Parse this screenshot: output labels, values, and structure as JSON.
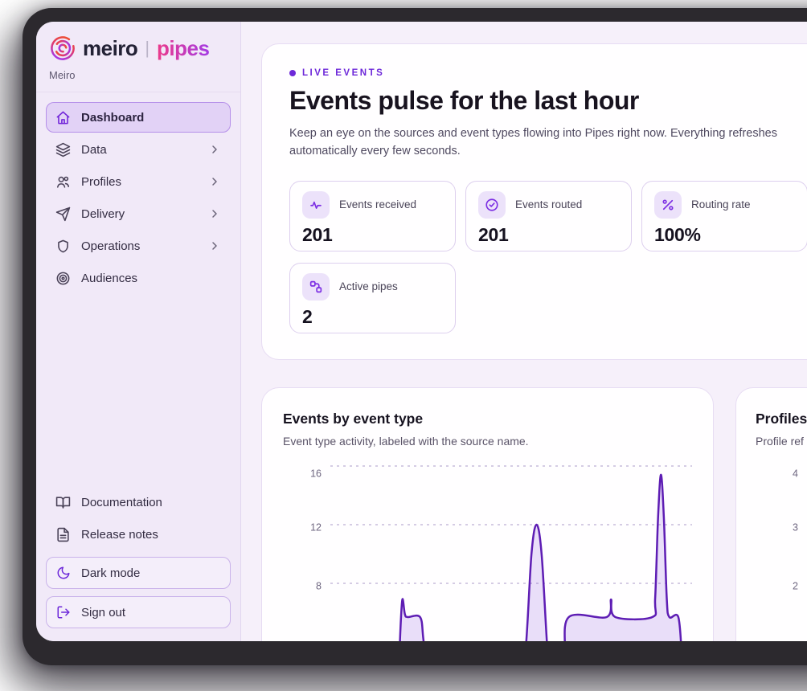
{
  "theme": {
    "accent": "#7c2fe3",
    "accent_deep": "#5e1db4",
    "frame": "#2c292e",
    "app_bg": "#f6f0fa",
    "sidebar_bg": "#f1e9f8",
    "card_bg": "#fffeff",
    "border": "#e2d5f0",
    "active_item_bg": "#e2d2f6",
    "brand_gradient": [
      "#ef4f2e",
      "#e03a6e",
      "#a936df"
    ],
    "pipes_gradient": [
      "#ec3a8a",
      "#a43ae3"
    ]
  },
  "brand": {
    "name": "meiro",
    "separator": "|",
    "product": "pipes",
    "workspace": "Meiro"
  },
  "sidebar": {
    "nav": [
      {
        "label": "Dashboard",
        "icon": "home",
        "active": true,
        "chevron": false
      },
      {
        "label": "Data",
        "icon": "layers",
        "active": false,
        "chevron": true
      },
      {
        "label": "Profiles",
        "icon": "users",
        "active": false,
        "chevron": true
      },
      {
        "label": "Delivery",
        "icon": "send",
        "active": false,
        "chevron": true
      },
      {
        "label": "Operations",
        "icon": "shield",
        "active": false,
        "chevron": true
      },
      {
        "label": "Audiences",
        "icon": "target",
        "active": false,
        "chevron": false
      }
    ],
    "footer_links": [
      {
        "label": "Documentation",
        "icon": "book-open"
      },
      {
        "label": "Release notes",
        "icon": "file-text"
      }
    ],
    "footer_buttons": [
      {
        "label": "Dark mode",
        "icon": "moon"
      },
      {
        "label": "Sign out",
        "icon": "log-out"
      }
    ]
  },
  "hero": {
    "badge": "LIVE EVENTS",
    "title": "Events pulse for the last hour",
    "subtitle": "Keep an eye on the sources and event types flowing into Pipes right now. Everything refreshes automatically every few seconds.",
    "stats": [
      {
        "label": "Events received",
        "value": "201",
        "icon": "activity"
      },
      {
        "label": "Events routed",
        "value": "201",
        "icon": "check-circle"
      },
      {
        "label": "Routing rate",
        "value": "100%",
        "icon": "percent"
      },
      {
        "label": "Active pipes",
        "value": "2",
        "icon": "workflow"
      }
    ]
  },
  "chart_data": [
    {
      "type": "area",
      "title": "Events by event type",
      "subtitle": "Event type activity, labeled with the source name.",
      "yticks": [
        16,
        12,
        8
      ],
      "ylim": [
        0,
        17
      ],
      "grid": "dashed-horizontal",
      "legend": false,
      "x_note": "last hour, x axis cropped out of view",
      "series": [
        {
          "name": "Events",
          "stroke": "#5e1db4",
          "fill": "rgba(126,63,222,0.17)",
          "points": [
            [
              0.186,
              0
            ],
            [
              0.193,
              4.5
            ],
            [
              0.199,
              6.9
            ],
            [
              0.206,
              5.9
            ],
            [
              0.214,
              5.7
            ],
            [
              0.248,
              5.7
            ],
            [
              0.257,
              4.2
            ],
            [
              0.27,
              1.0
            ],
            [
              0.278,
              0
            ],
            [
              0.52,
              0
            ],
            [
              0.54,
              3.5
            ],
            [
              0.556,
              10.0
            ],
            [
              0.57,
              12.0
            ],
            [
              0.584,
              10.0
            ],
            [
              0.6,
              3.5
            ],
            [
              0.614,
              0
            ],
            [
              0.636,
              0
            ],
            [
              0.648,
              3.0
            ],
            [
              0.659,
              5.7
            ],
            [
              0.764,
              5.7
            ],
            [
              0.776,
              6.9
            ],
            [
              0.788,
              5.7
            ],
            [
              0.89,
              5.7
            ],
            [
              0.898,
              7.0
            ],
            [
              0.906,
              12.5
            ],
            [
              0.914,
              15.4
            ],
            [
              0.922,
              12.5
            ],
            [
              0.93,
              7.0
            ],
            [
              0.937,
              5.7
            ],
            [
              0.962,
              5.7
            ],
            [
              0.972,
              3.0
            ],
            [
              0.982,
              0
            ]
          ]
        }
      ]
    },
    {
      "type": "area",
      "title": "Profiles",
      "subtitle": "Profile ref",
      "yticks": [
        4,
        3,
        2
      ],
      "grid": "dashed-horizontal",
      "legend": false,
      "note": "panel cropped at right edge of screenshot",
      "series": []
    }
  ]
}
